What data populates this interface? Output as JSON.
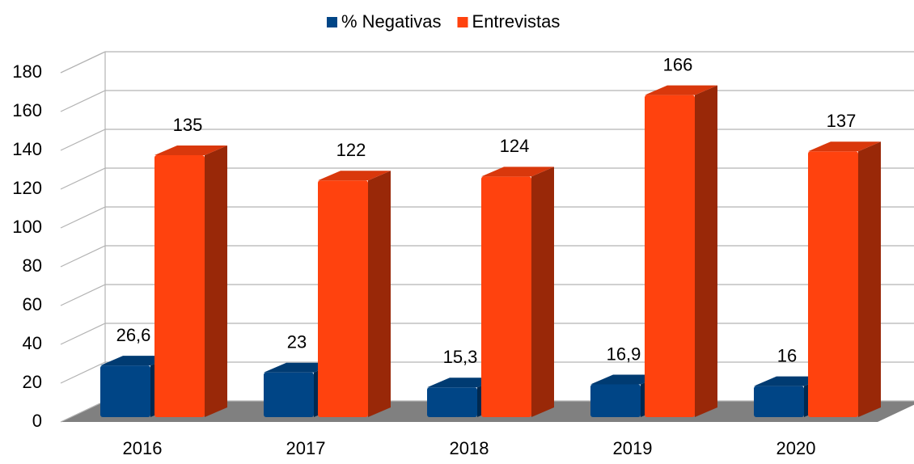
{
  "chart_data": {
    "type": "bar3d",
    "categories": [
      "2016",
      "2017",
      "2018",
      "2019",
      "2020"
    ],
    "series": [
      {
        "name": "% Negativas",
        "color": "#004586",
        "values": [
          26.6,
          23,
          15.3,
          16.9,
          16
        ],
        "value_labels": [
          "26,6",
          "23",
          "15,3",
          "16,9",
          "16"
        ]
      },
      {
        "name": "Entrevistas",
        "color": "#ff420e",
        "values": [
          135,
          122,
          124,
          166,
          137
        ]
      }
    ],
    "ylim": [
      0,
      180
    ],
    "yticks": [
      0,
      20,
      40,
      60,
      80,
      100,
      120,
      140,
      160,
      180
    ],
    "grid": true,
    "legend": "top"
  }
}
